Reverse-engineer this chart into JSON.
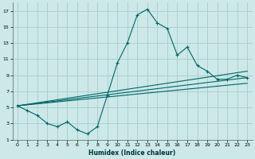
{
  "xlabel": "Humidex (Indice chaleur)",
  "background_color": "#cce8e8",
  "grid_color": "#aacccc",
  "line_color": "#006666",
  "xlim": [
    -0.5,
    23.5
  ],
  "ylim": [
    1,
    18
  ],
  "yticks": [
    1,
    3,
    5,
    7,
    9,
    11,
    13,
    15,
    17
  ],
  "xticks": [
    0,
    1,
    2,
    3,
    4,
    5,
    6,
    7,
    8,
    9,
    10,
    11,
    12,
    13,
    14,
    15,
    16,
    17,
    18,
    19,
    20,
    21,
    22,
    23
  ],
  "line1_x": [
    0,
    1,
    2,
    3,
    4,
    5,
    6,
    7,
    8,
    9,
    10,
    11,
    12,
    13,
    14,
    15,
    16,
    17,
    18,
    19,
    20,
    21,
    22,
    23
  ],
  "line1_y": [
    5.2,
    4.6,
    4.0,
    3.0,
    2.6,
    3.2,
    2.2,
    1.7,
    2.6,
    6.5,
    10.5,
    13.0,
    16.5,
    17.2,
    15.5,
    14.8,
    11.5,
    12.5,
    10.2,
    9.5,
    8.5,
    8.5,
    9.0,
    8.7
  ],
  "line2_x": [
    0,
    23
  ],
  "line2_y": [
    5.2,
    9.5
  ],
  "line3_x": [
    0,
    23
  ],
  "line3_y": [
    5.2,
    8.7
  ],
  "line4_x": [
    0,
    23
  ],
  "line4_y": [
    5.2,
    8.0
  ]
}
